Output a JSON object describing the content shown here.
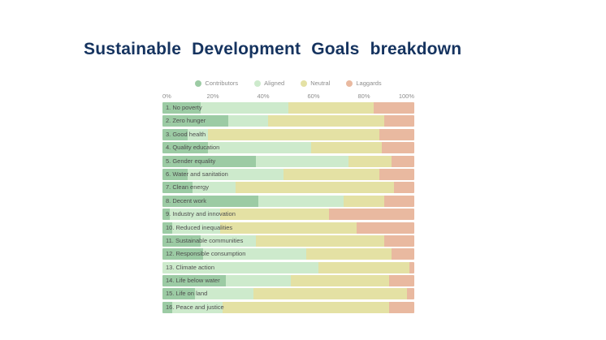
{
  "page": {
    "background": "#ffffff"
  },
  "chart_data": {
    "type": "bar",
    "stacked": true,
    "orientation": "horizontal",
    "title": "Sustainable Development Goals breakdown",
    "title_color": "#15335f",
    "xlabel": "",
    "ylabel": "",
    "x_ticks": [
      "0%",
      "20%",
      "40%",
      "60%",
      "80%",
      "100%"
    ],
    "xlim": [
      0,
      100
    ],
    "legend_position": "top-center",
    "grid": false,
    "categories": [
      "1. No poverty",
      "2. Zero hunger",
      "3. Good health",
      "4. Quality education",
      "5. Gender equality",
      "6. Water and sanitation",
      "7. Clean energy",
      "8. Decent work",
      "9. Industry and innovation",
      "10. Reduced inequalities",
      "11. Sustainable communities",
      "12. Responsible consumption",
      "13. Climate action",
      "14. Life below water",
      "15. Life on land",
      "16. Peace and justice"
    ],
    "series": [
      {
        "name": "Contributors",
        "color": "#9ccba4",
        "values": [
          15,
          26,
          10,
          18,
          37,
          10,
          12,
          38,
          3,
          4,
          15,
          16,
          0,
          25,
          13,
          4
        ]
      },
      {
        "name": "Aligned",
        "color": "#cdeacc",
        "values": [
          35,
          16,
          8,
          41,
          37,
          38,
          17,
          34,
          20,
          19,
          22,
          41,
          62,
          26,
          23,
          20
        ]
      },
      {
        "name": "Neutral",
        "color": "#e4e1a4",
        "values": [
          34,
          46,
          68,
          28,
          17,
          38,
          63,
          16,
          43,
          54,
          51,
          34,
          36,
          39,
          61,
          66
        ]
      },
      {
        "name": "Laggards",
        "color": "#e9b9a0",
        "values": [
          16,
          12,
          14,
          13,
          9,
          14,
          8,
          12,
          34,
          23,
          12,
          9,
          2,
          10,
          3,
          10
        ]
      }
    ]
  }
}
